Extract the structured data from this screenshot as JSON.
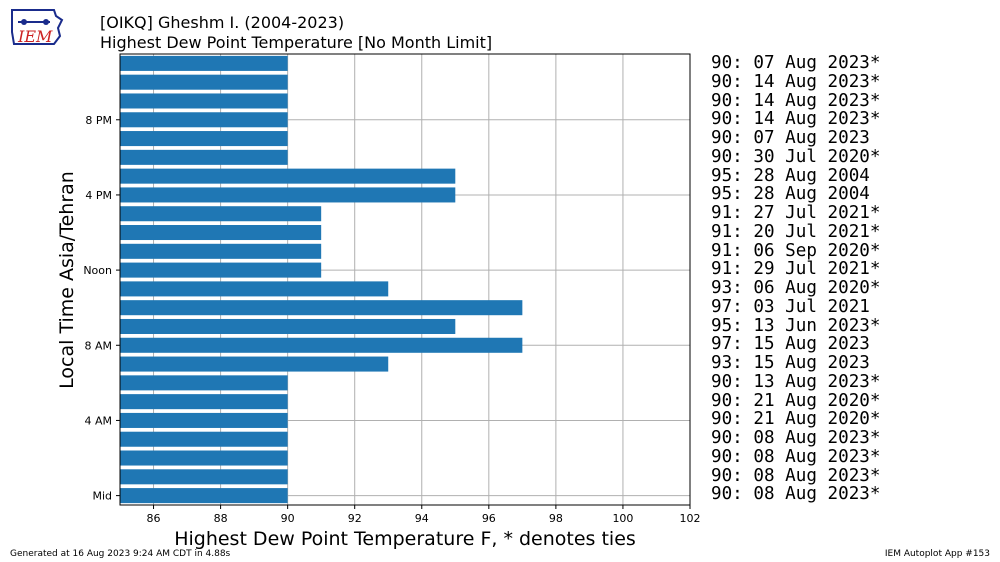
{
  "title": "[OIKQ] Gheshm I. (2004-2023)",
  "subtitle": "Highest Dew Point Temperature [No Month Limit]",
  "logo_text": "IEM",
  "footer_left": "Generated at 16 Aug 2023 9:24 AM CDT in 4.88s",
  "footer_right": "IEM Autoplot App #153",
  "colors": {
    "bar": "#1f77b4",
    "grid": "#b0b0b0",
    "logo": "#1a2c8c",
    "logo_text": "#cc2222"
  },
  "chart_data": {
    "type": "bar",
    "orientation": "horizontal",
    "xlabel": "Highest Dew Point Temperature F, * denotes ties",
    "ylabel": "Local Time Asia/Tehran",
    "xlim": [
      85,
      102
    ],
    "xticks": [
      86,
      88,
      90,
      92,
      94,
      96,
      98,
      100,
      102
    ],
    "ylim": [
      -0.5,
      23.5
    ],
    "yticks": [
      {
        "value": 0,
        "label": "Mid"
      },
      {
        "value": 4,
        "label": "4 AM"
      },
      {
        "value": 8,
        "label": "8 AM"
      },
      {
        "value": 12,
        "label": "Noon"
      },
      {
        "value": 16,
        "label": "4 PM"
      },
      {
        "value": 20,
        "label": "8 PM"
      }
    ],
    "grid": true,
    "hours": [
      0,
      1,
      2,
      3,
      4,
      5,
      6,
      7,
      8,
      9,
      10,
      11,
      12,
      13,
      14,
      15,
      16,
      17,
      18,
      19,
      20,
      21,
      22,
      23
    ],
    "values": [
      90,
      90,
      90,
      90,
      90,
      90,
      90,
      93,
      97,
      95,
      97,
      93,
      91,
      91,
      91,
      91,
      95,
      95,
      90,
      90,
      90,
      90,
      90,
      90
    ],
    "annotations": [
      "90: 08 Aug 2023*",
      "90: 08 Aug 2023*",
      "90: 08 Aug 2023*",
      "90: 08 Aug 2023*",
      "90: 21 Aug 2020*",
      "90: 21 Aug 2020*",
      "90: 13 Aug 2023*",
      "93: 15 Aug 2023",
      "97: 15 Aug 2023",
      "95: 13 Jun 2023*",
      "97: 03 Jul 2021",
      "93: 06 Aug 2020*",
      "91: 29 Jul 2021*",
      "91: 06 Sep 2020*",
      "91: 20 Jul 2021*",
      "91: 27 Jul 2021*",
      "95: 28 Aug 2004",
      "95: 28 Aug 2004",
      "90: 30 Jul 2020*",
      "90: 07 Aug 2023",
      "90: 14 Aug 2023*",
      "90: 14 Aug 2023*",
      "90: 14 Aug 2023*",
      "90: 07 Aug 2023*"
    ]
  }
}
